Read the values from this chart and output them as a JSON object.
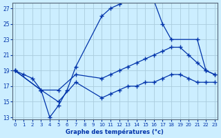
{
  "xlabel": "Graphe des températures (°c)",
  "bg_color": "#cceeff",
  "grid_color": "#aaccdd",
  "line_color": "#0033aa",
  "xmin": 0,
  "xmax": 23,
  "ymin": 13,
  "ymax": 27,
  "yticks": [
    13,
    15,
    17,
    19,
    21,
    23,
    25,
    27
  ],
  "xticks": [
    0,
    1,
    2,
    3,
    4,
    5,
    6,
    7,
    8,
    9,
    10,
    11,
    12,
    13,
    14,
    15,
    16,
    17,
    18,
    19,
    20,
    21,
    22,
    23
  ],
  "line1_x": [
    0,
    1,
    2,
    3,
    4,
    5,
    6,
    7,
    10,
    11,
    12,
    13,
    14,
    15,
    16,
    17,
    18,
    21,
    22,
    23
  ],
  "line1_y": [
    19,
    18.5,
    18,
    16.5,
    13,
    14.5,
    16.5,
    19.5,
    26,
    27,
    27.5,
    28,
    28,
    28.5,
    28,
    25,
    23,
    23,
    19,
    18.5
  ],
  "line2_x": [
    0,
    3,
    5,
    7,
    10,
    11,
    12,
    13,
    14,
    15,
    16,
    17,
    18,
    19,
    20,
    21,
    22,
    23
  ],
  "line2_y": [
    19,
    16.5,
    16.5,
    18.5,
    18,
    18.5,
    19,
    19.5,
    20,
    20.5,
    21,
    21.5,
    22,
    22,
    21,
    20,
    19,
    18.5
  ],
  "line3_x": [
    0,
    3,
    5,
    7,
    10,
    11,
    12,
    13,
    14,
    15,
    16,
    17,
    18,
    19,
    20,
    21,
    22,
    23
  ],
  "line3_y": [
    19,
    16.5,
    15,
    17.5,
    15.5,
    16,
    16.5,
    17,
    17,
    17.5,
    17.5,
    18,
    18.5,
    18.5,
    18,
    17.5,
    17.5,
    17.5
  ]
}
